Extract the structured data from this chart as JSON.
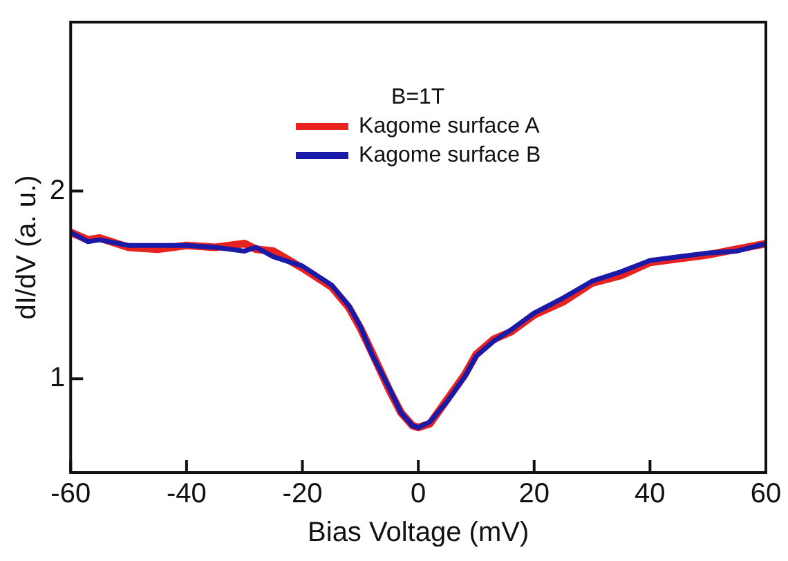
{
  "chart_data": {
    "type": "line",
    "xlabel": "Bias Voltage (mV)",
    "ylabel": "dI/dV (a. u.)",
    "legend_title": "B=1T",
    "legend": "top",
    "grid": false,
    "marker": "none",
    "line_style": "solid",
    "xlim": [
      -60,
      60
    ],
    "xticks": [
      -60,
      -40,
      -20,
      0,
      20,
      40,
      60
    ],
    "ylim": [
      0.5,
      2.9
    ],
    "yticks": [
      1,
      2
    ],
    "x": [
      -60,
      -57,
      -55,
      -50,
      -45,
      -40,
      -35,
      -30,
      -28,
      -25,
      -20,
      -15,
      -12,
      -10,
      -8,
      -5,
      -3,
      -1,
      0,
      2,
      5,
      8,
      10,
      13,
      16,
      20,
      25,
      30,
      35,
      40,
      45,
      50,
      55,
      60
    ],
    "series": [
      {
        "name": "Kagome surface A",
        "color": "#e8231f",
        "values": [
          1.78,
          1.74,
          1.75,
          1.7,
          1.69,
          1.71,
          1.7,
          1.72,
          1.69,
          1.68,
          1.59,
          1.49,
          1.38,
          1.27,
          1.14,
          0.94,
          0.82,
          0.75,
          0.74,
          0.76,
          0.89,
          1.02,
          1.13,
          1.21,
          1.25,
          1.34,
          1.41,
          1.51,
          1.55,
          1.62,
          1.64,
          1.66,
          1.69,
          1.72
        ]
      },
      {
        "name": "Kagome surface B",
        "color": "#1a1aa8",
        "values": [
          1.78,
          1.73,
          1.74,
          1.71,
          1.71,
          1.71,
          1.7,
          1.68,
          1.7,
          1.65,
          1.6,
          1.5,
          1.39,
          1.28,
          1.13,
          0.95,
          0.82,
          0.75,
          0.74,
          0.77,
          0.88,
          1.01,
          1.12,
          1.2,
          1.26,
          1.35,
          1.43,
          1.52,
          1.57,
          1.63,
          1.65,
          1.67,
          1.68,
          1.72
        ]
      }
    ]
  }
}
